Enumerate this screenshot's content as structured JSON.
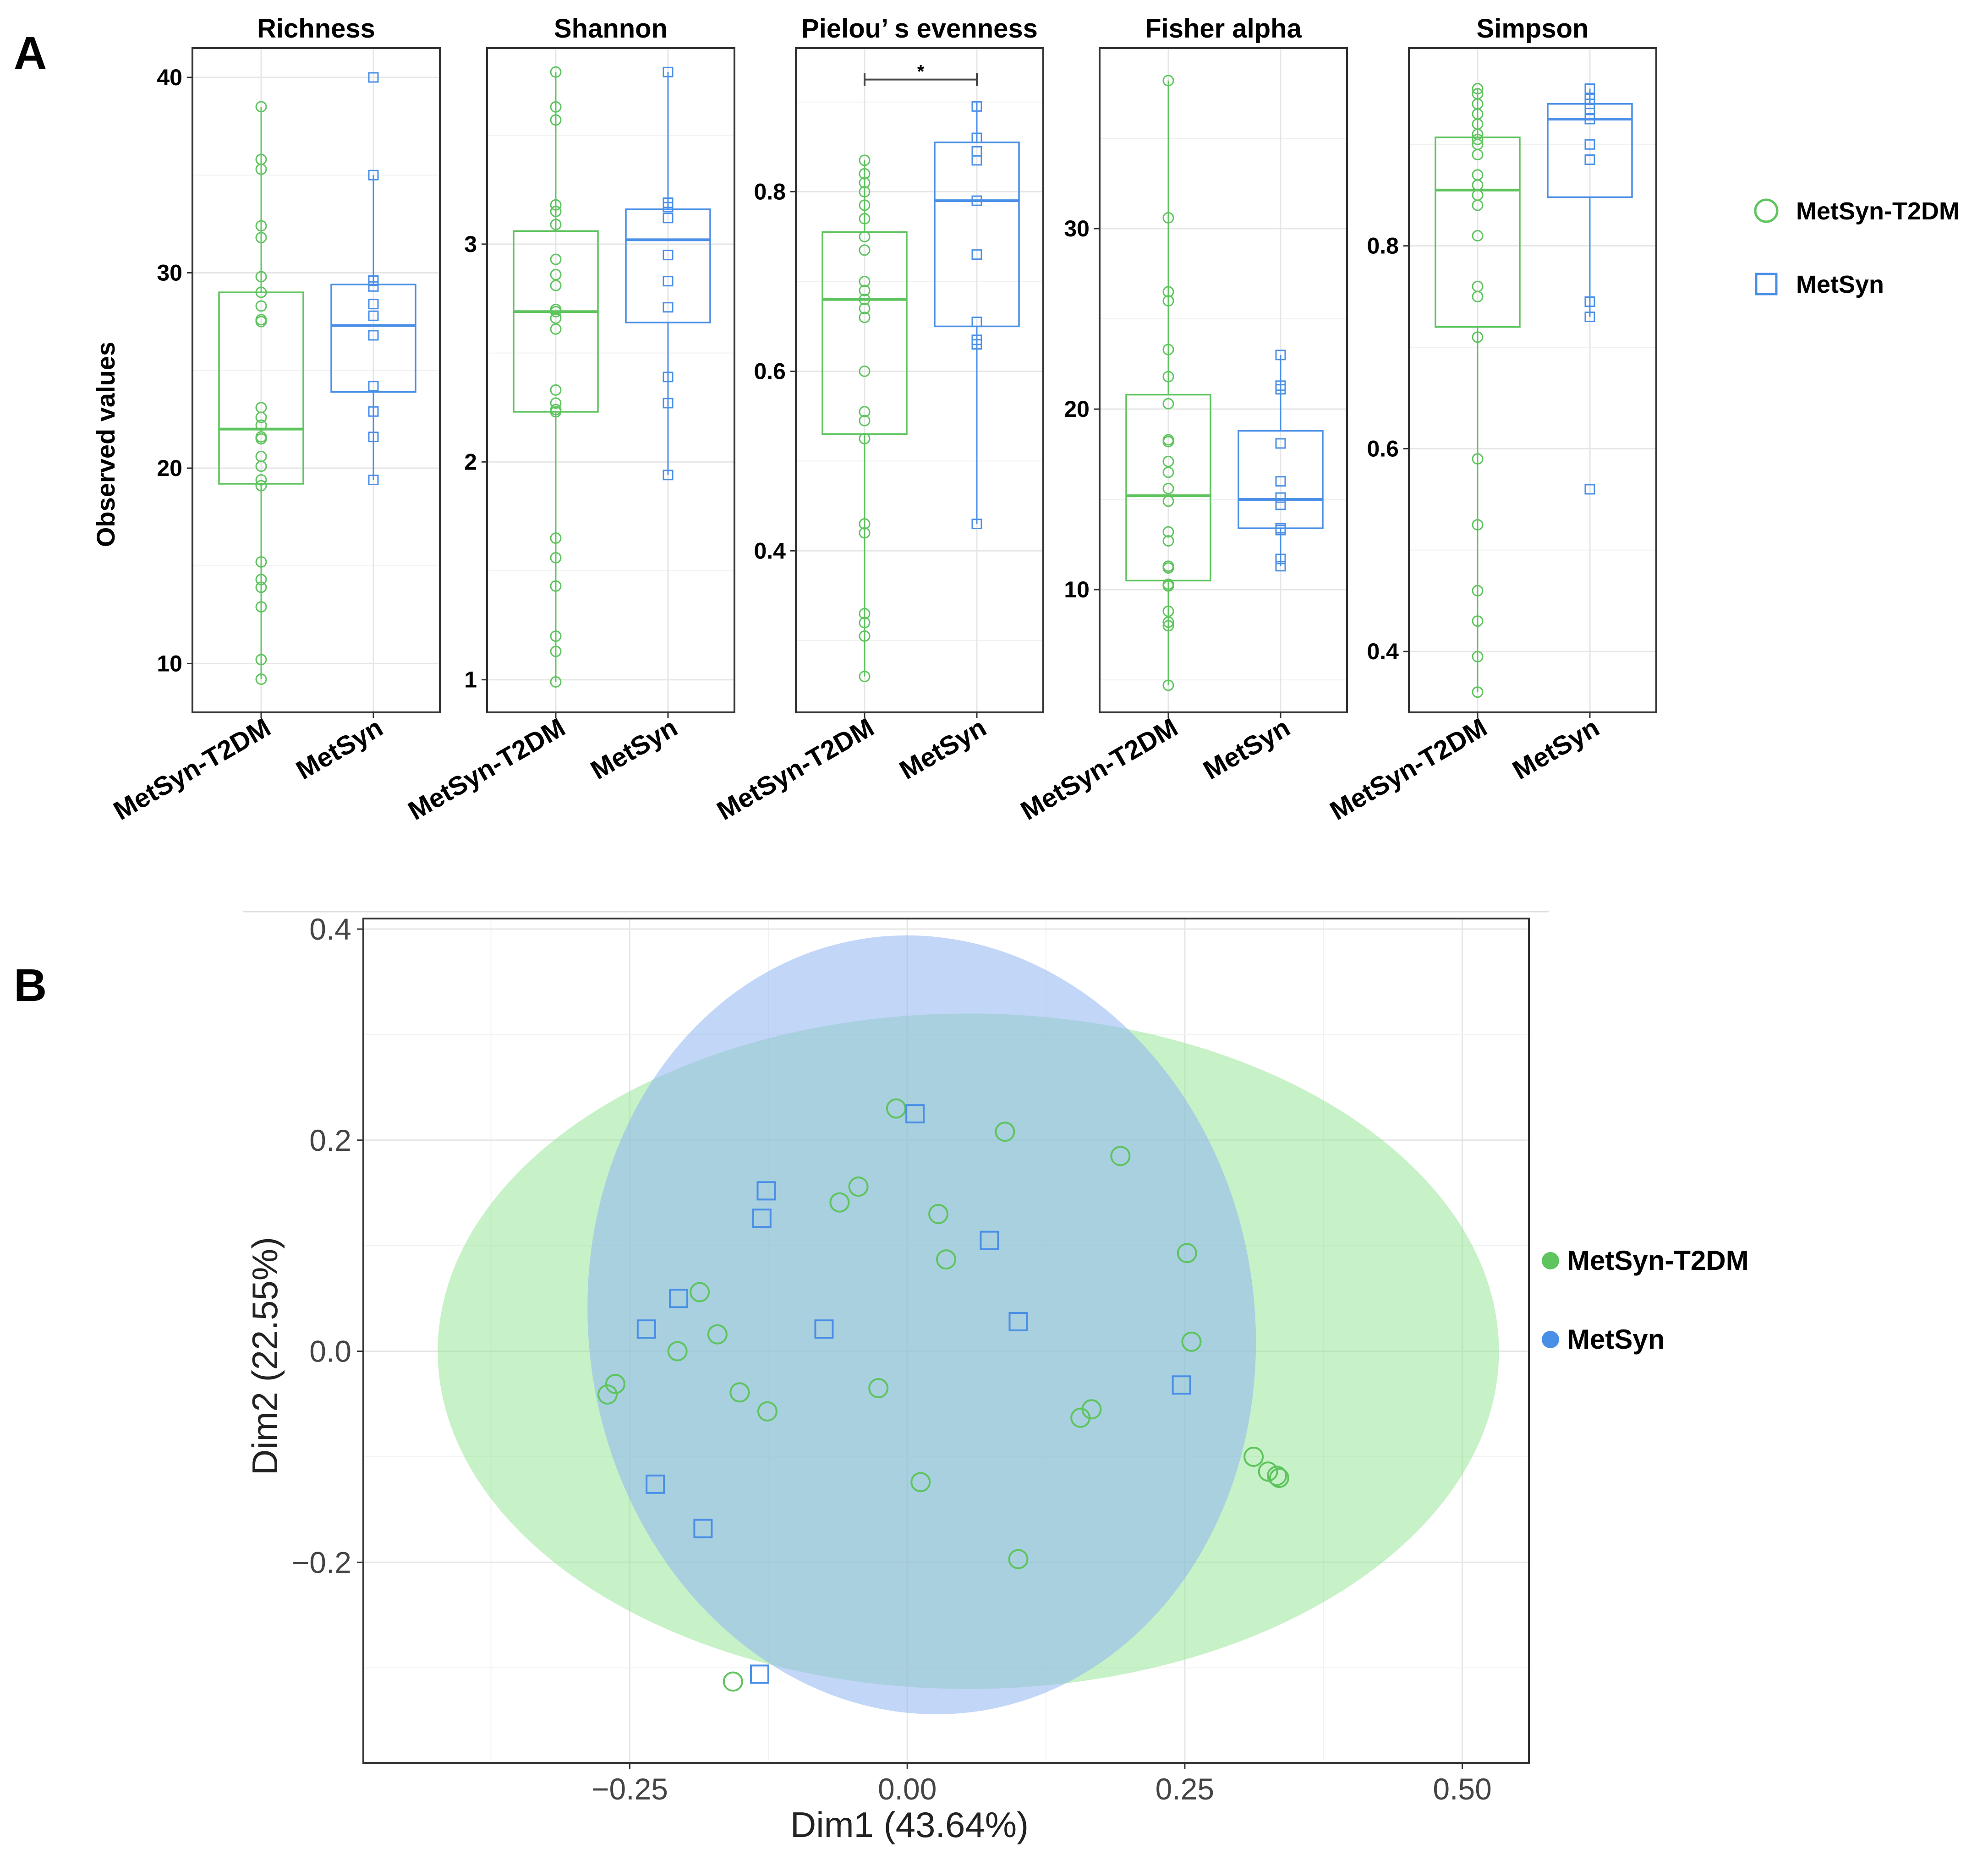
{
  "colors": {
    "green": "#5ec45e",
    "blue": "#4a8fe7",
    "green_fill": "#90e390",
    "blue_fill": "#8fb4f2",
    "grid": "#e6e6e6",
    "frame": "#333333"
  },
  "panel_a": {
    "letter": "A",
    "ylabel": "Observed values",
    "legend": [
      {
        "label": "MetSyn-T2DM",
        "shape": "circle",
        "color": "#5ec45e"
      },
      {
        "label": "MetSyn",
        "shape": "square",
        "color": "#4a8fe7"
      }
    ]
  },
  "panel_b": {
    "letter": "B",
    "xlabel": "Dim1 (43.64%)",
    "ylabel": "Dim2 (22.55%)",
    "legend": [
      {
        "label": "MetSyn-T2DM",
        "color": "#5ec45e"
      },
      {
        "label": "MetSyn",
        "color": "#4a8fe7"
      }
    ]
  },
  "chart_data": [
    {
      "type": "box",
      "title": "Richness",
      "categories": [
        "MetSyn-T2DM",
        "MetSyn"
      ],
      "ylim": [
        7.5,
        41.5
      ],
      "yticks": [
        10,
        20,
        30,
        40
      ],
      "significance": null,
      "series": [
        {
          "name": "MetSyn-T2DM",
          "q1": 19.2,
          "median": 22.0,
          "q3": 29.0,
          "whisker_low": 9.2,
          "whisker_high": 38.5,
          "points": [
            38.5,
            35.8,
            35.3,
            32.4,
            31.8,
            29.8,
            29.0,
            28.3,
            27.6,
            27.5,
            23.1,
            22.6,
            22.2,
            21.6,
            21.5,
            20.6,
            20.1,
            19.4,
            19.1,
            15.2,
            14.3,
            13.9,
            12.9,
            10.2,
            9.2
          ]
        },
        {
          "name": "MetSyn",
          "q1": 23.9,
          "median": 27.3,
          "q3": 29.4,
          "whisker_low": 19.4,
          "whisker_high": 35.0,
          "points": [
            40.0,
            35.0,
            29.6,
            29.3,
            28.4,
            27.8,
            26.8,
            24.2,
            22.9,
            21.6,
            19.4
          ]
        }
      ]
    },
    {
      "type": "box",
      "title": "Shannon",
      "categories": [
        "MetSyn-T2DM",
        "MetSyn"
      ],
      "ylim": [
        0.85,
        3.9
      ],
      "yticks": [
        1,
        2,
        3
      ],
      "significance": null,
      "series": [
        {
          "name": "MetSyn-T2DM",
          "q1": 2.23,
          "median": 2.69,
          "q3": 3.06,
          "whisker_low": 0.99,
          "whisker_high": 3.79,
          "points": [
            3.79,
            3.63,
            3.57,
            3.18,
            3.15,
            3.09,
            2.93,
            2.86,
            2.81,
            2.7,
            2.69,
            2.66,
            2.61,
            2.33,
            2.27,
            2.24,
            2.23,
            1.65,
            1.56,
            1.43,
            1.2,
            1.13,
            0.99
          ]
        },
        {
          "name": "MetSyn",
          "q1": 2.64,
          "median": 3.02,
          "q3": 3.16,
          "whisker_low": 1.94,
          "whisker_high": 3.79,
          "points": [
            3.79,
            3.19,
            3.17,
            3.12,
            2.95,
            2.83,
            2.71,
            2.39,
            2.27,
            1.94
          ]
        }
      ]
    },
    {
      "type": "box",
      "title": "Pielou’ s evenness",
      "categories": [
        "MetSyn-T2DM",
        "MetSyn"
      ],
      "ylim": [
        0.22,
        0.96
      ],
      "yticks": [
        0.4,
        0.6,
        0.8
      ],
      "significance": {
        "label": "*",
        "y": 0.925
      },
      "series": [
        {
          "name": "MetSyn-T2DM",
          "q1": 0.53,
          "median": 0.68,
          "q3": 0.755,
          "whisker_low": 0.26,
          "whisker_high": 0.835,
          "points": [
            0.835,
            0.82,
            0.81,
            0.8,
            0.785,
            0.77,
            0.75,
            0.735,
            0.7,
            0.69,
            0.68,
            0.67,
            0.66,
            0.6,
            0.555,
            0.545,
            0.525,
            0.43,
            0.42,
            0.33,
            0.32,
            0.305,
            0.26
          ]
        },
        {
          "name": "MetSyn",
          "q1": 0.65,
          "median": 0.79,
          "q3": 0.855,
          "whisker_low": 0.43,
          "whisker_high": 0.9,
          "points": [
            0.895,
            0.86,
            0.845,
            0.835,
            0.79,
            0.73,
            0.655,
            0.635,
            0.63,
            0.43
          ]
        }
      ]
    },
    {
      "type": "box",
      "title": "Fisher alpha",
      "categories": [
        "MetSyn-T2DM",
        "MetSyn"
      ],
      "ylim": [
        3.2,
        40.0
      ],
      "yticks": [
        10,
        20,
        30
      ],
      "significance": null,
      "series": [
        {
          "name": "MetSyn-T2DM",
          "q1": 10.5,
          "median": 15.2,
          "q3": 20.8,
          "whisker_low": 4.7,
          "whisker_high": 38.2,
          "points": [
            38.2,
            30.6,
            26.5,
            26.0,
            23.3,
            21.8,
            20.3,
            18.3,
            18.2,
            17.1,
            16.5,
            15.6,
            14.9,
            13.2,
            12.7,
            11.3,
            11.2,
            10.3,
            10.2,
            8.8,
            8.2,
            8.0,
            4.7
          ]
        },
        {
          "name": "MetSyn",
          "q1": 13.4,
          "median": 15.0,
          "q3": 18.8,
          "whisker_low": 11.3,
          "whisker_high": 23.0,
          "points": [
            23.0,
            21.3,
            21.1,
            18.1,
            16.0,
            15.1,
            14.7,
            13.4,
            13.3,
            11.7,
            11.3
          ]
        }
      ]
    },
    {
      "type": "box",
      "title": "Simpson",
      "categories": [
        "MetSyn-T2DM",
        "MetSyn"
      ],
      "ylim": [
        0.34,
        0.995
      ],
      "yticks": [
        0.4,
        0.6,
        0.8
      ],
      "significance": null,
      "series": [
        {
          "name": "MetSyn-T2DM",
          "q1": 0.72,
          "median": 0.855,
          "q3": 0.907,
          "whisker_low": 0.36,
          "whisker_high": 0.955,
          "points": [
            0.955,
            0.95,
            0.94,
            0.93,
            0.92,
            0.91,
            0.905,
            0.9,
            0.89,
            0.87,
            0.86,
            0.85,
            0.84,
            0.81,
            0.76,
            0.75,
            0.71,
            0.59,
            0.525,
            0.46,
            0.43,
            0.395,
            0.36
          ]
        },
        {
          "name": "MetSyn",
          "q1": 0.848,
          "median": 0.925,
          "q3": 0.94,
          "whisker_low": 0.73,
          "whisker_high": 0.955,
          "points": [
            0.955,
            0.945,
            0.94,
            0.935,
            0.925,
            0.9,
            0.885,
            0.745,
            0.73,
            0.56
          ]
        }
      ]
    },
    {
      "type": "scatter",
      "title": "",
      "xlabel": "Dim1 (43.64%)",
      "ylabel": "Dim2 (22.55%)",
      "xlim": [
        -0.49,
        0.56
      ],
      "ylim": [
        -0.39,
        0.41
      ],
      "xticks": [
        -0.25,
        0.0,
        0.25,
        0.5
      ],
      "xtick_labels": [
        "−0.25",
        "0.00",
        "0.25",
        "0.50"
      ],
      "yticks": [
        -0.2,
        0.0,
        0.2,
        0.4
      ],
      "ytick_labels": [
        "−0.2",
        "0.0",
        "0.2",
        "0.4"
      ],
      "series": [
        {
          "name": "MetSyn-T2DM",
          "marker": "circle",
          "ellipse": {
            "cx": 0.055,
            "cy": 0.0,
            "rx": 0.478,
            "ry": 0.32
          },
          "x": [
            -0.01,
            0.088,
            0.192,
            -0.044,
            -0.061,
            0.028,
            0.035,
            0.252,
            -0.187,
            -0.171,
            -0.207,
            -0.263,
            -0.27,
            -0.151,
            -0.126,
            -0.026,
            0.166,
            0.156,
            0.256,
            0.312,
            0.325,
            0.333,
            0.335,
            0.012,
            0.1,
            -0.157
          ],
          "y": [
            0.23,
            0.208,
            0.185,
            0.156,
            0.141,
            0.13,
            0.087,
            0.093,
            0.056,
            0.016,
            0.0,
            -0.031,
            -0.041,
            -0.039,
            -0.057,
            -0.035,
            -0.055,
            -0.063,
            0.009,
            -0.1,
            -0.114,
            -0.118,
            -0.12,
            -0.124,
            -0.197,
            -0.313
          ]
        },
        {
          "name": "MetSyn",
          "marker": "square",
          "ellipse": {
            "cx": 0.013,
            "cy": 0.025,
            "rx": 0.3,
            "ry": 0.37,
            "angle": -8
          },
          "x": [
            0.007,
            -0.127,
            -0.131,
            0.074,
            -0.206,
            -0.235,
            -0.075,
            0.1,
            0.247,
            -0.227,
            -0.184,
            -0.133
          ],
          "y": [
            0.225,
            0.152,
            0.126,
            0.105,
            0.05,
            0.021,
            0.021,
            0.028,
            -0.032,
            -0.126,
            -0.168,
            -0.306
          ]
        }
      ]
    }
  ]
}
